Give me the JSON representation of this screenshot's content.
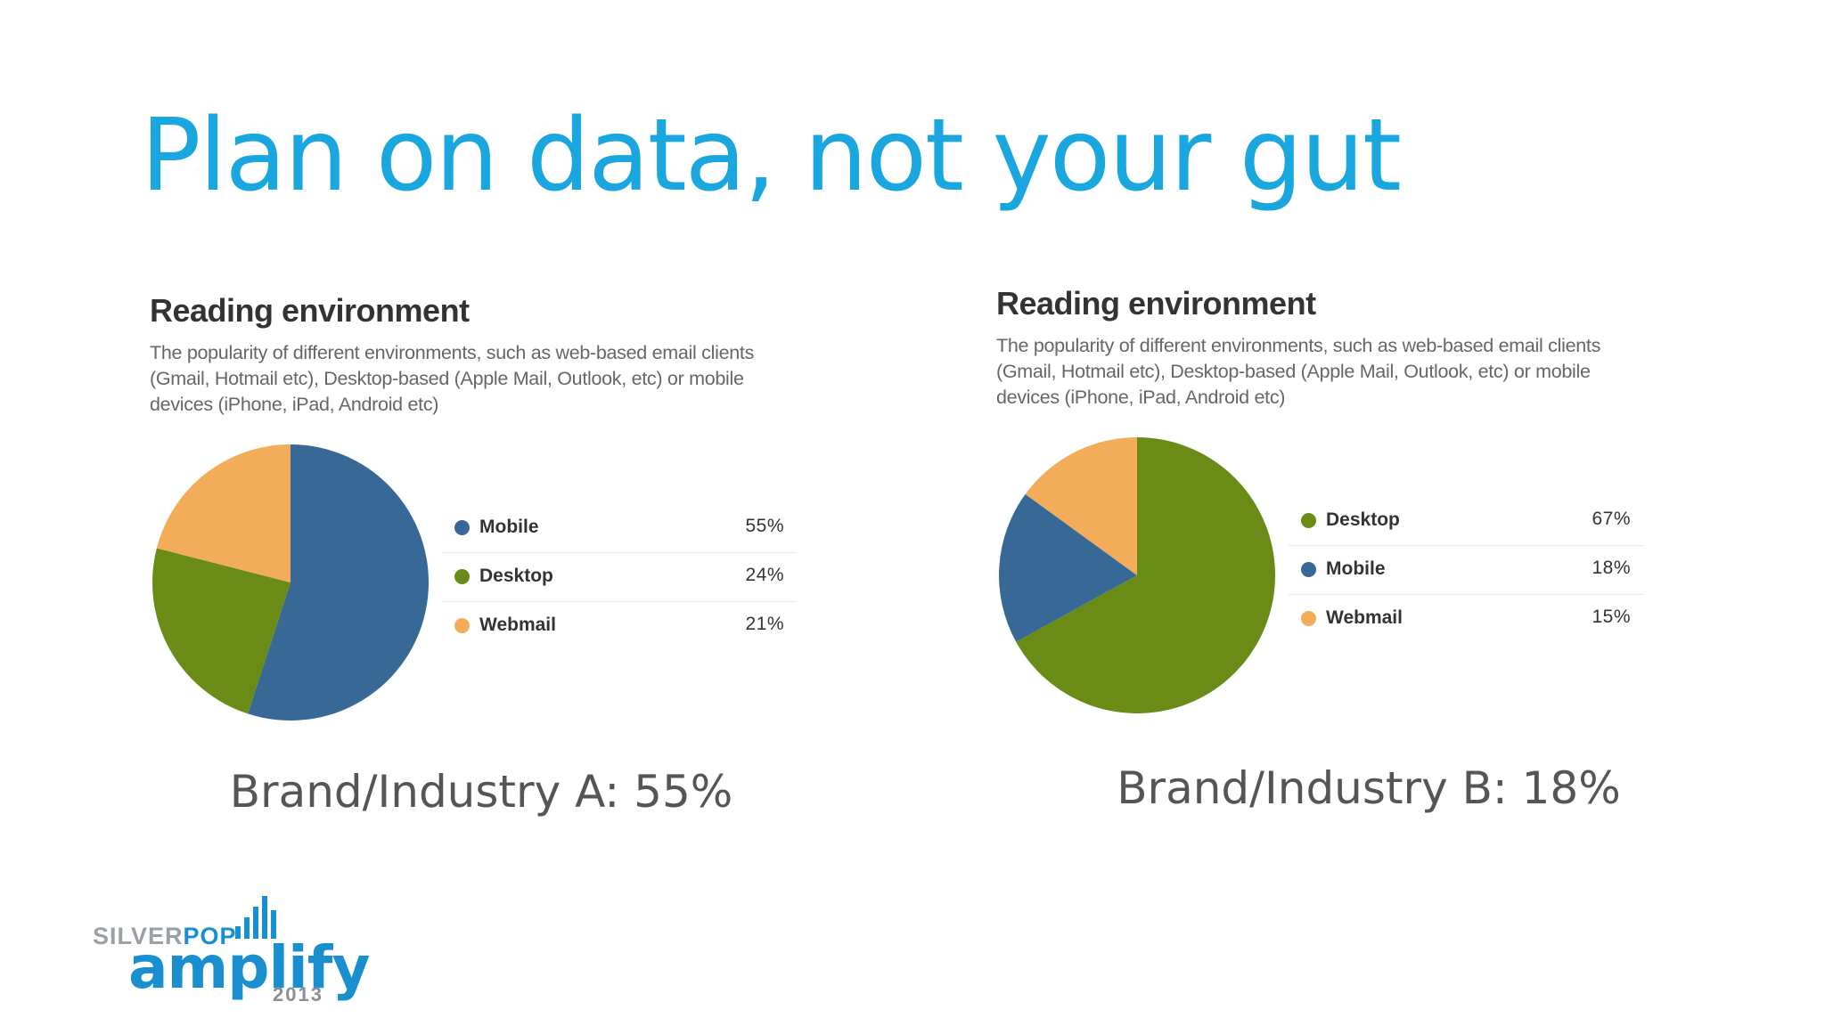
{
  "slide": {
    "title": "Plan on data, not your gut"
  },
  "chart_data": [
    {
      "type": "pie",
      "title": "Reading environment",
      "subtitle": "The popularity of different environments, such as web-based email clients (Gmail, Hotmail etc), Desktop-based (Apple Mail, Outlook, etc) or mobile devices (iPhone, iPad, Android etc)",
      "categories": [
        "Mobile",
        "Desktop",
        "Webmail"
      ],
      "values": [
        55,
        24,
        21
      ],
      "value_labels": [
        "55%",
        "24%",
        "21%"
      ],
      "colors": [
        "#386896",
        "#6a8c17",
        "#f2ac5a"
      ],
      "legend": "right",
      "caption": "Brand/Industry A: 55%"
    },
    {
      "type": "pie",
      "title": "Reading environment",
      "subtitle": "The popularity of different environments, such as web-based email clients (Gmail, Hotmail etc), Desktop-based (Apple Mail, Outlook, etc) or mobile devices (iPhone, iPad, Android etc)",
      "categories": [
        "Desktop",
        "Mobile",
        "Webmail"
      ],
      "values": [
        67,
        18,
        15
      ],
      "value_labels": [
        "67%",
        "18%",
        "15%"
      ],
      "colors": [
        "#6a8c17",
        "#386896",
        "#f2ac5a"
      ],
      "legend": "right",
      "caption": "Brand/Industry B: 18%"
    }
  ],
  "logo": {
    "silver": "SILVER",
    "pop": "POP",
    "word": "amplify",
    "year": "2013"
  }
}
